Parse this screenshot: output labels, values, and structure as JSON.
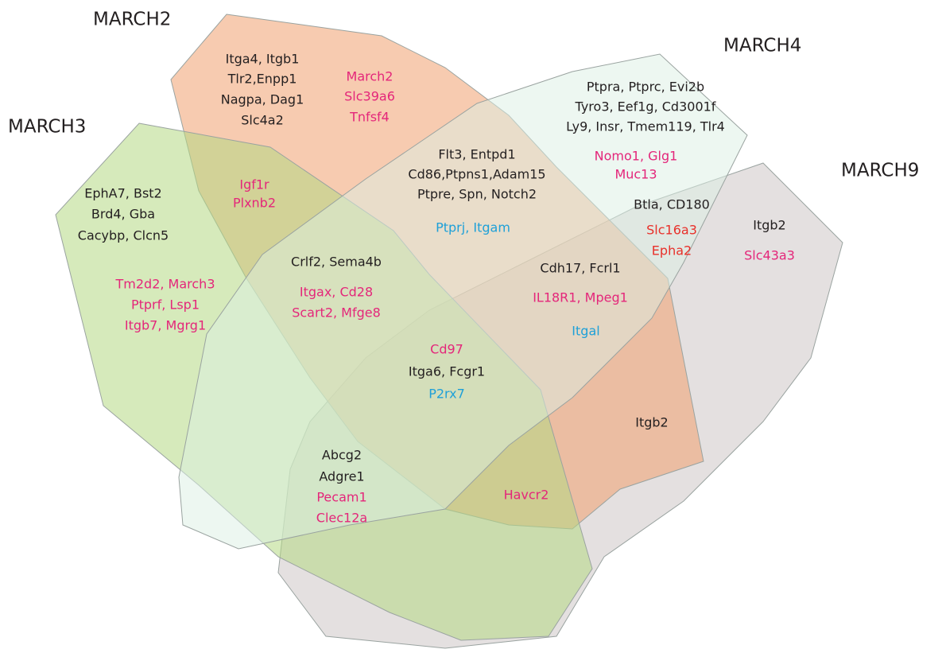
{
  "sets": [
    {
      "label": "MARCH2"
    },
    {
      "label": "MARCH3"
    },
    {
      "label": "MARCH4"
    },
    {
      "label": "MARCH9"
    }
  ],
  "regions": [
    {
      "lines": [
        {
          "text": "Itga4, Itgb1",
          "color": "#231f20"
        },
        {
          "text": "Tlr2,Enpp1",
          "color": "#231f20"
        },
        {
          "text": "Nagpa, Dag1",
          "color": "#231f20"
        },
        {
          "text": "Slc4a2",
          "color": "#231f20"
        }
      ]
    },
    {
      "lines": [
        {
          "text": "March2",
          "color": "#e4267a"
        },
        {
          "text": "Slc39a6",
          "color": "#e4267a"
        },
        {
          "text": "Tnfsf4",
          "color": "#e4267a"
        }
      ]
    },
    {
      "lines": [
        {
          "text": "Ptpra, Ptprc, Evi2b",
          "color": "#231f20"
        },
        {
          "text": "Tyro3, Eef1g, Cd3001f",
          "color": "#231f20"
        },
        {
          "text": "Ly9, Insr, Tmem119, Tlr4",
          "color": "#231f20"
        },
        {
          "text": "Nomo1, Glg1",
          "color": "#e4267a"
        },
        {
          "text": "Muc13",
          "color": "#e4267a"
        }
      ]
    },
    {
      "lines": [
        {
          "text": "Flt3, Entpd1",
          "color": "#231f20"
        },
        {
          "text": "Cd86,Ptpns1,Adam15",
          "color": "#231f20"
        },
        {
          "text": "Ptpre, Spn, Notch2",
          "color": "#231f20"
        },
        {
          "text": "Ptprj, Itgam",
          "color": "#1ea0d8"
        }
      ]
    },
    {
      "lines": [
        {
          "text": "Igf1r",
          "color": "#e4267a"
        },
        {
          "text": "Plxnb2",
          "color": "#e4267a"
        }
      ]
    },
    {
      "lines": [
        {
          "text": "EphA7, Bst2",
          "color": "#231f20"
        },
        {
          "text": "Brd4, Gba",
          "color": "#231f20"
        },
        {
          "text": "Cacybp, Clcn5",
          "color": "#231f20"
        }
      ]
    },
    {
      "lines": [
        {
          "text": "Tm2d2, March3",
          "color": "#e4267a"
        },
        {
          "text": "Ptprf, Lsp1",
          "color": "#e4267a"
        },
        {
          "text": "Itgb7, Mgrg1",
          "color": "#e4267a"
        }
      ]
    },
    {
      "lines": [
        {
          "text": "Crlf2, Sema4b",
          "color": "#231f20"
        },
        {
          "text": "Itgax, Cd28",
          "color": "#e4267a"
        },
        {
          "text": "Scart2, Mfge8",
          "color": "#e4267a"
        }
      ]
    },
    {
      "lines": [
        {
          "text": "Btla, CD180",
          "color": "#231f20"
        },
        {
          "text": "Slc16a3",
          "color": "#e8302a"
        },
        {
          "text": "Epha2",
          "color": "#e8302a"
        }
      ]
    },
    {
      "lines": [
        {
          "text": "Itgb2",
          "color": "#231f20"
        },
        {
          "text": "Slc43a3",
          "color": "#e4267a"
        }
      ]
    },
    {
      "lines": [
        {
          "text": "Cdh17, Fcrl1",
          "color": "#231f20"
        },
        {
          "text": "IL18R1, Mpeg1",
          "color": "#e4267a"
        },
        {
          "text": "Itgal",
          "color": "#1ea0d8"
        }
      ]
    },
    {
      "lines": [
        {
          "text": "Cd97",
          "color": "#e4267a"
        },
        {
          "text": "Itga6, Fcgr1",
          "color": "#231f20"
        },
        {
          "text": "P2rx7",
          "color": "#1ea0d8"
        }
      ]
    },
    {
      "lines": [
        {
          "text": "Itgb2",
          "color": "#231f20"
        }
      ]
    },
    {
      "lines": [
        {
          "text": "Abcg2",
          "color": "#231f20"
        },
        {
          "text": "Adgre1",
          "color": "#231f20"
        },
        {
          "text": "Pecam1",
          "color": "#e4267a"
        },
        {
          "text": "Clec12a",
          "color": "#e4267a"
        }
      ]
    },
    {
      "lines": [
        {
          "text": "Havcr2",
          "color": "#e4267a"
        }
      ]
    }
  ]
}
